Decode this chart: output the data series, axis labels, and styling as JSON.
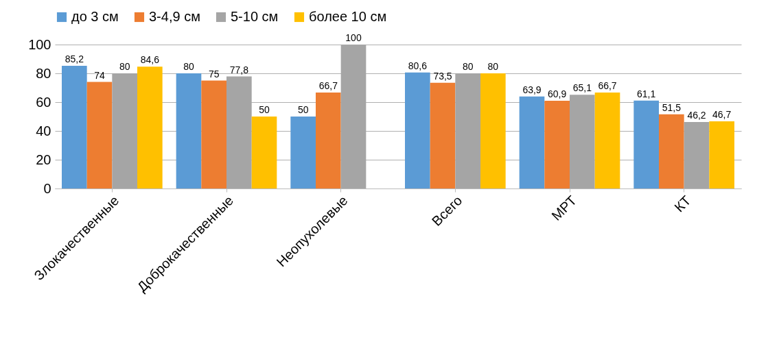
{
  "chart_data": {
    "type": "bar",
    "categories": [
      "Злокачественные",
      "Доброкачественные",
      "Неопухолевые",
      "Всего",
      "МРТ",
      "КТ"
    ],
    "series": [
      {
        "name": "до 3 см",
        "color": "#5b9bd5",
        "values": [
          85.2,
          80,
          50,
          80.6,
          63.9,
          61.1
        ],
        "value_labels": [
          "85,2",
          "80",
          "50",
          "80,6",
          "63,9",
          "61,1"
        ]
      },
      {
        "name": "3-4,9 см",
        "color": "#ed7d31",
        "values": [
          74,
          75,
          66.7,
          73.5,
          60.9,
          51.5
        ],
        "value_labels": [
          "74",
          "75",
          "66,7",
          "73,5",
          "60,9",
          "51,5"
        ]
      },
      {
        "name": "5-10 см",
        "color": "#a5a5a5",
        "values": [
          80,
          77.8,
          100,
          80,
          65.1,
          46.2
        ],
        "value_labels": [
          "80",
          "77,8",
          "100",
          "80",
          "65,1",
          "46,2"
        ]
      },
      {
        "name": "более 10 см",
        "color": "#ffc000",
        "values": [
          84.6,
          50,
          null,
          80,
          66.7,
          46.7
        ],
        "value_labels": [
          "84,6",
          "50",
          null,
          "80",
          "66,7",
          "46,7"
        ]
      }
    ],
    "ylim": [
      0,
      100
    ],
    "yticks": [
      0,
      20,
      40,
      60,
      80,
      100
    ],
    "grid": "y",
    "legend": "top"
  }
}
